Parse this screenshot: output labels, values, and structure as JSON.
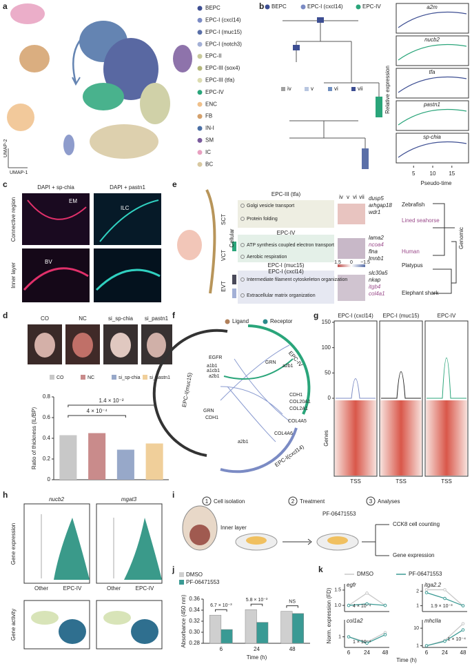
{
  "panel_labels": [
    "a",
    "b",
    "c",
    "d",
    "e",
    "f",
    "g",
    "h",
    "i",
    "j",
    "k"
  ],
  "a": {
    "legend": [
      {
        "name": "BEPC",
        "color": "#3d4e92"
      },
      {
        "name": "EPC-I (cxcl14)",
        "color": "#7b8bc4"
      },
      {
        "name": "EPC-I (muc15)",
        "color": "#5a6fa8"
      },
      {
        "name": "EPC-I (notch3)",
        "color": "#a3b0d6"
      },
      {
        "name": "EPC-II",
        "color": "#c8c99a"
      },
      {
        "name": "EPC-III (sox4)",
        "color": "#b3b67a"
      },
      {
        "name": "EPC-III (tfa)",
        "color": "#dcdcb0"
      },
      {
        "name": "EPC-IV",
        "color": "#2aa57a"
      },
      {
        "name": "ENC",
        "color": "#f0c08a"
      },
      {
        "name": "FB",
        "color": "#d4a06b"
      },
      {
        "name": "IN-I",
        "color": "#4a6fa5"
      },
      {
        "name": "SM",
        "color": "#7a5b9c"
      },
      {
        "name": "IC",
        "color": "#e8a0c0"
      },
      {
        "name": "BC",
        "color": "#d8c8a0"
      }
    ],
    "xlabel": "UMAP-1",
    "ylabel": "UMAP-2"
  },
  "b": {
    "legend": [
      {
        "name": "BEPC",
        "color": "#3d4e92"
      },
      {
        "name": "EPC-I (cxcl14)",
        "color": "#7b8bc4"
      },
      {
        "name": "EPC-IV",
        "color": "#2aa57a"
      }
    ],
    "stages": [
      {
        "name": "iv",
        "color": "#a0a0a0"
      },
      {
        "name": "v",
        "color": "#b8c6e0"
      },
      {
        "name": "vi",
        "color": "#6f8fc0"
      },
      {
        "name": "vii",
        "color": "#3d4e92"
      }
    ],
    "genes": [
      "a2m",
      "nucb2",
      "tfa",
      "pastn1",
      "sp-chia"
    ],
    "ylabel": "Relative expression",
    "xlabel": "Pseudo-time",
    "xticks": [
      5,
      10,
      15
    ]
  },
  "c": {
    "columns": [
      "DAPI + sp-chia",
      "DAPI + pastn1"
    ],
    "rows": [
      "Connective region",
      "Inner layer"
    ],
    "insets": [
      "EM",
      "ILC",
      "BV"
    ]
  },
  "e": {
    "layers": [
      "SCT",
      "VCT",
      "EVT"
    ],
    "levels": [
      "Cellular",
      "Genomic"
    ],
    "groups": [
      {
        "titles": [
          "EPC-III (tfa)"
        ],
        "terms": [
          "Golgi vesicle transport",
          "Protein folding"
        ],
        "genes": [
          "dusp5",
          "arhgap18",
          "wdr1"
        ]
      },
      {
        "titles": [
          "EPC-IV"
        ],
        "terms": [
          "ATP synthesis coupled electron transport",
          "Aerobic respiration"
        ],
        "genes": [
          "lama2",
          "ncoa4",
          "flna",
          "lmnb1"
        ]
      },
      {
        "titles": [
          "EPC-I (muc15)",
          "EPC-I (cxcl14)"
        ],
        "terms": [
          "Intermediate filament cytoskeleton organization",
          "Extracellular matrix organization"
        ],
        "genes": [
          "slc30a5",
          "nkap",
          "itgb4",
          "col4a1"
        ]
      }
    ],
    "stages": [
      "iv",
      "v",
      "vi",
      "vii"
    ],
    "colorbar": [
      1.5,
      0,
      {
        "value": -1.5,
        "label": "−1.5"
      }
    ],
    "species": [
      "Zebrafish",
      "Lined seahorse",
      "Human",
      "Platypus",
      "Elephant shark"
    ]
  },
  "f": {
    "legend": [
      "Ligand",
      "Receptor"
    ],
    "groups": [
      "EPC-IV",
      "EPC-I(muc15)",
      "EPC-I(cxcl14)"
    ],
    "genes": [
      "GRN",
      "EGFR",
      "a1b1",
      "a1cb1",
      "a2b1",
      "a2b1",
      "GRN",
      "CDH1",
      "CDH1",
      "COL20A1",
      "COL2A1",
      "COL4A5",
      "COL4A6",
      "a2b1"
    ]
  },
  "g": {
    "titles": [
      "EPC-I (cxcl14)",
      "EPC-I (muc15)",
      "EPC-IV"
    ],
    "ylabel": "Genes",
    "xlabel": "TSS",
    "yticks": [
      0,
      50,
      100,
      150
    ]
  },
  "h": {
    "genes": [
      "nucb2",
      "mgat3"
    ],
    "ylabel_top": "Gene expression",
    "ylabel_bottom": "Gene activity",
    "categories": [
      "Other",
      "EPC-IV"
    ]
  },
  "i": {
    "steps": [
      {
        "n": 1,
        "label": "Cell isolation"
      },
      {
        "n": 2,
        "label": "Treatment"
      },
      {
        "n": 3,
        "label": "Analyses"
      }
    ],
    "sample": "Inner layer",
    "drug": "PF-06471553",
    "outputs": [
      "CCK8 cell counting",
      "Gene expression"
    ]
  },
  "chart_data": [
    {
      "type": "bar",
      "categories": [
        "CO",
        "NC",
        "si_sp-chia",
        "si_pastn1"
      ],
      "values": [
        0.43,
        0.45,
        0.29,
        0.35
      ],
      "colors": [
        "#c8c8c8",
        "#c98b8b",
        "#97a8c9",
        "#f0cf9a"
      ],
      "ylabel": "Ratio of thickness (IL/BP)",
      "ylim": [
        0,
        0.8
      ],
      "yticks": [
        0,
        0.2,
        0.4,
        0.6,
        0.8
      ],
      "annotations": [
        "4 × 10⁻⁴",
        "1.4 × 10⁻²"
      ]
    },
    {
      "type": "bar",
      "categories": [
        "6",
        "24",
        "48"
      ],
      "series": [
        {
          "name": "DMSO",
          "color": "#cfcfcf",
          "values": [
            0.331,
            0.341,
            0.338
          ]
        },
        {
          "name": "PF-06471553",
          "color": "#3a9a94",
          "values": [
            0.305,
            0.318,
            0.334
          ]
        }
      ],
      "ylabel": "Absorbance (450 nm)",
      "xlabel": "Time (h)",
      "ylim": [
        0.28,
        0.36
      ],
      "yticks": [
        0.28,
        {
          "value": 0.3,
          "label": "0.30"
        },
        0.32,
        0.34,
        0.36
      ],
      "annotations": [
        "6.7 × 10⁻³",
        "5.8 × 10⁻³",
        "NS"
      ]
    },
    {
      "type": "line",
      "categories": [
        "6",
        "24",
        "48"
      ],
      "xlabel": "Time (h)",
      "ylabel": "Norm. expression (FD)",
      "series": [
        {
          "name": "DMSO",
          "color": "#c8c8c8"
        },
        {
          "name": "PF-06471553",
          "color": "#3a9a94"
        }
      ],
      "panels": [
        {
          "title": "egfr",
          "ylim": [
            0.8,
            1.7
          ],
          "yticks": [
            {
              "value": 1,
              "label": "1.0"
            },
            1.5
          ],
          "values": [
            [
              1.0,
              1.4,
              1.0
            ],
            [
              1.0,
              1.05,
              1.0
            ]
          ],
          "annotation": "4 × 10⁻⁴"
        },
        {
          "title": "itga2.2",
          "ylim": [
            0.6,
            2.5
          ],
          "yticks": [
            1,
            2
          ],
          "values": [
            [
              2.1,
              2.1,
              1.0
            ],
            [
              1.9,
              1.5,
              1.0
            ]
          ],
          "annotation": "1.9 × 10⁻³"
        },
        {
          "title": "col1a2",
          "ylim": [
            0.5,
            1.8
          ],
          "yticks": [
            1
          ],
          "values": [
            [
              1.0,
              0.75,
              1.2
            ],
            [
              1.0,
              0.7,
              1.1
            ]
          ],
          "annotation": "1 × 10⁻⁴"
        },
        {
          "title": "mhcIIa",
          "log": true,
          "ylim": [
            0.8,
            30
          ],
          "yticks": [
            1,
            10
          ],
          "values": [
            [
              1.0,
              2.0,
              18
            ],
            [
              1.0,
              1.8,
              8
            ]
          ],
          "annotation": "1 × 10⁻⁴"
        }
      ]
    }
  ]
}
